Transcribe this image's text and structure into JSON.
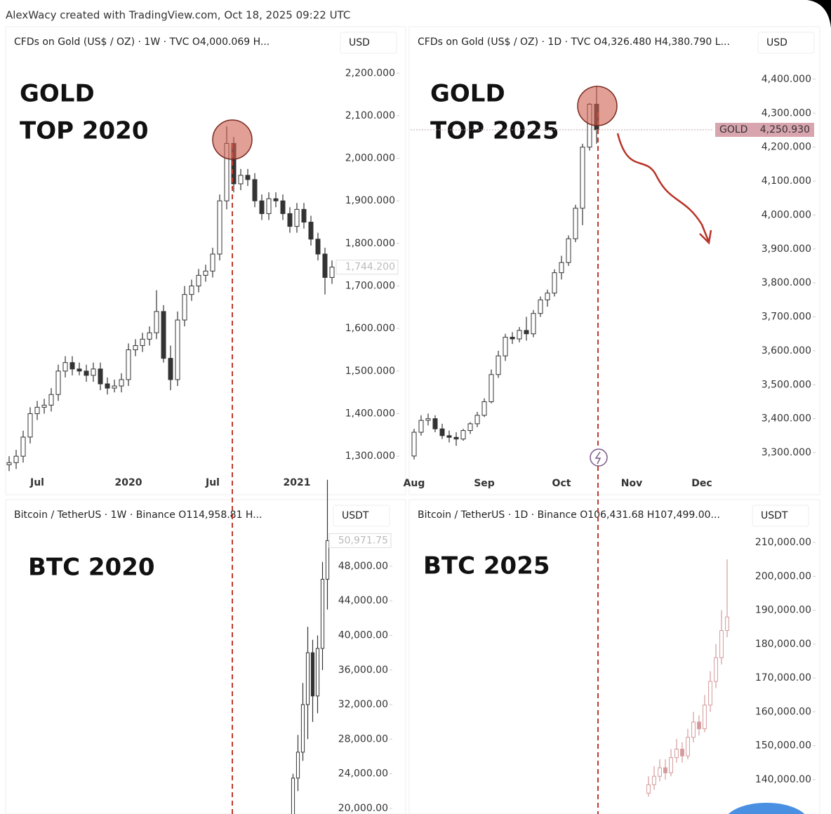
{
  "header": {
    "text": "AlexWacy created with TradingView.com, Oct 18, 2025 09:22 UTC"
  },
  "chart_data": [
    {
      "type": "candlestick",
      "title": "CFDs on Gold (US$ / OZ) · 1W · TVC  O4,000.069  H...",
      "currency": "USD",
      "annotation": [
        "GOLD",
        "TOP 2020"
      ],
      "color": "#333333",
      "categories": [
        null,
        null,
        null,
        null,
        "Jul",
        null,
        null,
        null,
        null,
        null,
        null,
        null,
        null,
        null,
        null,
        null,
        null,
        "2020",
        null,
        null,
        null,
        null,
        null,
        null,
        null,
        null,
        null,
        null,
        null,
        "Jul",
        null,
        null,
        null,
        null,
        null,
        null,
        null,
        null,
        null,
        null,
        null,
        "2021",
        null,
        null,
        null,
        null,
        null
      ],
      "open": [
        1280,
        1285,
        1300,
        1345,
        1400,
        1415,
        1420,
        1445,
        1500,
        1520,
        1505,
        1500,
        1490,
        1505,
        1470,
        1460,
        1465,
        1480,
        1550,
        1560,
        1575,
        1590,
        1640,
        1530,
        1480,
        1620,
        1680,
        1700,
        1725,
        1735,
        1775,
        1900,
        2035,
        1940,
        1960,
        1950,
        1900,
        1870,
        1905,
        1900,
        1870,
        1840,
        1880,
        1850,
        1810,
        1775,
        1720
      ],
      "high": [
        1300,
        1315,
        1360,
        1415,
        1430,
        1435,
        1460,
        1515,
        1535,
        1535,
        1520,
        1515,
        1520,
        1520,
        1485,
        1480,
        1495,
        1565,
        1575,
        1590,
        1605,
        1690,
        1655,
        1560,
        1640,
        1700,
        1715,
        1740,
        1750,
        1790,
        1915,
        2075,
        2050,
        1975,
        1975,
        1965,
        1915,
        1920,
        1920,
        1915,
        1885,
        1895,
        1895,
        1865,
        1825,
        1790,
        1760
      ],
      "low": [
        1265,
        1270,
        1285,
        1330,
        1385,
        1400,
        1405,
        1430,
        1485,
        1490,
        1490,
        1475,
        1475,
        1455,
        1445,
        1450,
        1450,
        1465,
        1535,
        1545,
        1560,
        1575,
        1520,
        1455,
        1465,
        1605,
        1665,
        1685,
        1710,
        1720,
        1760,
        1880,
        1920,
        1925,
        1935,
        1885,
        1855,
        1855,
        1885,
        1855,
        1825,
        1825,
        1835,
        1795,
        1760,
        1680,
        1705
      ],
      "close": [
        1285,
        1300,
        1345,
        1400,
        1415,
        1420,
        1445,
        1500,
        1520,
        1505,
        1500,
        1490,
        1505,
        1470,
        1460,
        1465,
        1480,
        1550,
        1560,
        1575,
        1590,
        1640,
        1530,
        1480,
        1620,
        1680,
        1700,
        1725,
        1735,
        1775,
        1900,
        2035,
        1940,
        1960,
        1950,
        1900,
        1870,
        1905,
        1900,
        1870,
        1840,
        1880,
        1850,
        1810,
        1775,
        1720,
        1744.2
      ],
      "ylim": [
        1259,
        2240
      ],
      "yticks": [
        {
          "value": 1300,
          "label": "1,300.000"
        },
        {
          "value": 1400,
          "label": "1,400.000"
        },
        {
          "value": 1500,
          "label": "1,500.000"
        },
        {
          "value": 1600,
          "label": "1,600.000"
        },
        {
          "value": 1700,
          "label": "1,700.000"
        },
        {
          "value": 1800,
          "label": "1,800.000"
        },
        {
          "value": 1900,
          "label": "1,900.000"
        },
        {
          "value": 2000,
          "label": "2,000.000"
        },
        {
          "value": 2100,
          "label": "2,100.000"
        },
        {
          "value": 2200,
          "label": "2,200.000"
        }
      ],
      "price_tag": {
        "value": 1744.2,
        "label": "1,744.200"
      }
    },
    {
      "type": "candlestick",
      "title": "CFDs on Gold (US$ / OZ) · 1D · TVC  O4,326.480  H4,380.790  L...",
      "currency": "USD",
      "annotation": [
        "GOLD",
        "TOP 2025"
      ],
      "color": "#333333",
      "categories": [
        "Aug",
        null,
        null,
        null,
        null,
        null,
        null,
        null,
        null,
        null,
        "Sep",
        null,
        null,
        null,
        null,
        null,
        null,
        null,
        null,
        null,
        null,
        "Oct",
        null,
        null,
        null,
        null,
        null,
        null,
        null,
        null,
        null,
        "Nov",
        null,
        null,
        null,
        null,
        null,
        null,
        null,
        null,
        null,
        "Dec"
      ],
      "open": [
        3290,
        3360,
        3395,
        3400,
        3370,
        3350,
        3345,
        3340,
        3365,
        3385,
        3410,
        3450,
        3530,
        3585,
        3640,
        3635,
        3660,
        3650,
        3710,
        3750,
        3770,
        3830,
        3860,
        3930,
        4020,
        4200,
        4326.48,
        null,
        null,
        null,
        null,
        null,
        null,
        null,
        null,
        null,
        null,
        null,
        null,
        null,
        null,
        null
      ],
      "high": [
        3370,
        3410,
        3415,
        3410,
        3385,
        3365,
        3360,
        3370,
        3390,
        3420,
        3460,
        3545,
        3600,
        3650,
        3655,
        3670,
        3700,
        3720,
        3760,
        3780,
        3840,
        3880,
        3940,
        4030,
        4210,
        4330,
        4380.79,
        null,
        null,
        null,
        null,
        null,
        null,
        null,
        null,
        null,
        null,
        null,
        null,
        null,
        null,
        null
      ],
      "low": [
        3280,
        3350,
        3380,
        3360,
        3340,
        3330,
        3320,
        3335,
        3355,
        3375,
        3405,
        3445,
        3520,
        3570,
        3620,
        3625,
        3630,
        3640,
        3700,
        3730,
        3760,
        3810,
        3850,
        3920,
        3970,
        4190,
        4210,
        null,
        null,
        null,
        null,
        null,
        null,
        null,
        null,
        null,
        null,
        null,
        null,
        null,
        null,
        null
      ],
      "close": [
        3360,
        3395,
        3400,
        3370,
        3350,
        3345,
        3340,
        3365,
        3385,
        3410,
        3450,
        3530,
        3585,
        3640,
        3635,
        3660,
        3650,
        3710,
        3750,
        3770,
        3830,
        3860,
        3930,
        4020,
        4200,
        4326.48,
        4250.93,
        null,
        null,
        null,
        null,
        null,
        null,
        null,
        null,
        null,
        null,
        null,
        null,
        null,
        null,
        null
      ],
      "ylim": [
        3238,
        4468
      ],
      "yticks": [
        {
          "value": 3300,
          "label": "3,300.000"
        },
        {
          "value": 3400,
          "label": "3,400.000"
        },
        {
          "value": 3500,
          "label": "3,500.000"
        },
        {
          "value": 3600,
          "label": "3,600.000"
        },
        {
          "value": 3700,
          "label": "3,700.000"
        },
        {
          "value": 3800,
          "label": "3,800.000"
        },
        {
          "value": 3900,
          "label": "3,900.000"
        },
        {
          "value": 4000,
          "label": "4,000.000"
        },
        {
          "value": 4100,
          "label": "4,100.000"
        },
        {
          "value": 4200,
          "label": "4,200.000"
        },
        {
          "value": 4300,
          "label": "4,300.000"
        },
        {
          "value": 4400,
          "label": "4,400.000"
        }
      ],
      "price_tag": {
        "name": "GOLD",
        "value": 4250.93,
        "label": "4,250.930"
      }
    },
    {
      "type": "candlestick",
      "title": "Bitcoin / TetherUS · 1W · Binance  O114,958.81  H...",
      "currency": "USDT",
      "annotation": [
        "BTC 2020"
      ],
      "color": "#333333",
      "open": [
        19000,
        23500,
        26500,
        32000,
        38000,
        33000,
        38500,
        46500
      ],
      "high": [
        24000,
        28500,
        34500,
        41000,
        39500,
        40000,
        48500,
        58000
      ],
      "low": [
        18800,
        22000,
        25500,
        28000,
        30000,
        31000,
        36000,
        43000
      ],
      "close": [
        23500,
        26500,
        32000,
        38000,
        33000,
        38500,
        46500,
        50971.75
      ],
      "ylim": [
        19350,
        55300
      ],
      "yticks": [
        {
          "value": 20000,
          "label": "20,000.00"
        },
        {
          "value": 24000,
          "label": "24,000.00"
        },
        {
          "value": 28000,
          "label": "28,000.00"
        },
        {
          "value": 32000,
          "label": "32,000.00"
        },
        {
          "value": 36000,
          "label": "36,000.00"
        },
        {
          "value": 40000,
          "label": "40,000.00"
        },
        {
          "value": 44000,
          "label": "44,000.00"
        },
        {
          "value": 48000,
          "label": "48,000.00"
        }
      ],
      "price_tag": {
        "value": 50971.75,
        "label": "50,971.75"
      }
    },
    {
      "type": "candlestick",
      "title": "Bitcoin / TetherUS · 1D · Binance  O106,431.68  H107,499.00...",
      "currency": "USDT",
      "annotation": [
        "BTC 2025"
      ],
      "color": "#d49a9c",
      "open": [
        136000,
        138500,
        141000,
        143500,
        142000,
        146500,
        149000,
        147000,
        152500,
        157000,
        155000,
        162000,
        169000,
        176000,
        184000
      ],
      "high": [
        141000,
        144000,
        146000,
        146000,
        149000,
        152000,
        151000,
        155000,
        160000,
        159000,
        165000,
        172000,
        180000,
        190000,
        205000
      ],
      "low": [
        135000,
        137000,
        139500,
        140000,
        141000,
        145000,
        145000,
        146000,
        151000,
        153000,
        154000,
        160000,
        167000,
        174000,
        182000
      ],
      "close": [
        138500,
        141000,
        143500,
        142000,
        146500,
        149000,
        147000,
        152500,
        157000,
        155000,
        162000,
        169000,
        176000,
        184000,
        188000
      ],
      "ylim": [
        129860,
        221600
      ],
      "yticks": [
        {
          "value": 140000,
          "label": "140,000.00"
        },
        {
          "value": 150000,
          "label": "150,000.00"
        },
        {
          "value": 160000,
          "label": "160,000.00"
        },
        {
          "value": 170000,
          "label": "170,000.00"
        },
        {
          "value": 180000,
          "label": "180,000.00"
        },
        {
          "value": 190000,
          "label": "190,000.00"
        },
        {
          "value": 200000,
          "label": "200,000.00"
        },
        {
          "value": 210000,
          "label": "210,000.00"
        }
      ]
    }
  ]
}
